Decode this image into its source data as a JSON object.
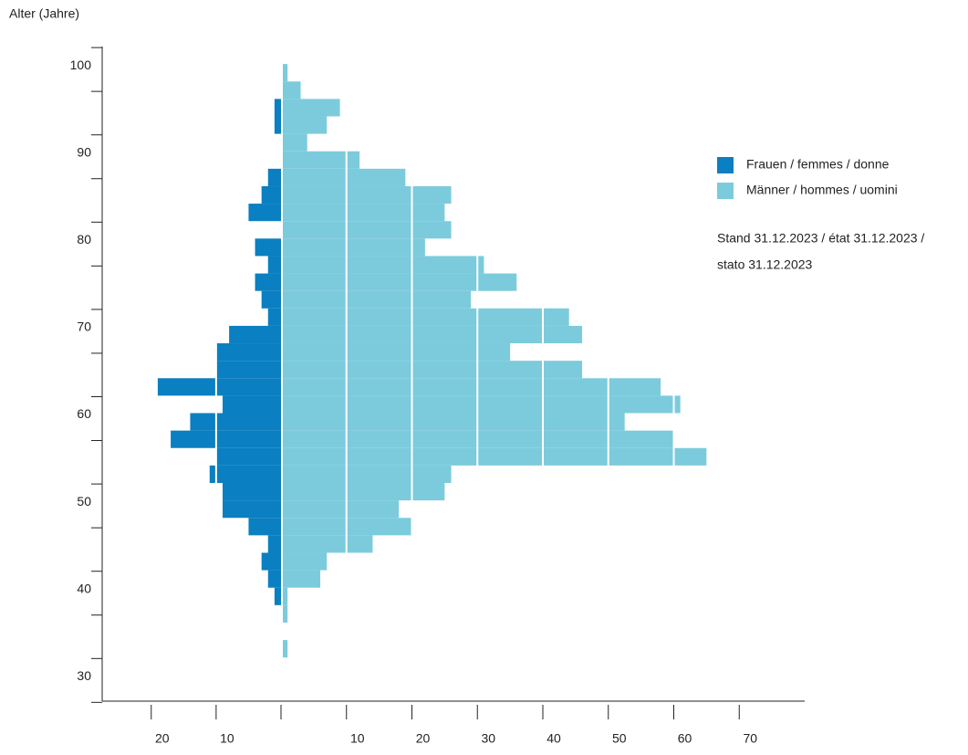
{
  "chart_data": {
    "type": "pyramid",
    "y_axis_label": "Alter (Jahre)",
    "ages": [
      99,
      97,
      95,
      93,
      91,
      89,
      87,
      85,
      83,
      81,
      79,
      77,
      75,
      73,
      71,
      69,
      67,
      65,
      63,
      61,
      59,
      57,
      55,
      53,
      51,
      49,
      47,
      45,
      43,
      41,
      39,
      37,
      35,
      33
    ],
    "series": [
      {
        "name": "Frauen / femmes / donne",
        "color": "#0a7fc1",
        "side": "left",
        "values": [
          0,
          0,
          1,
          1,
          0,
          0,
          2,
          3,
          5,
          0,
          4,
          2,
          4,
          3,
          2,
          8,
          10,
          10,
          19,
          9,
          14,
          17,
          10,
          11,
          9,
          9,
          5,
          2,
          3,
          2,
          1,
          0,
          0,
          0
        ]
      },
      {
        "name": "Männer / hommes / uomini",
        "color": "#7ccbdc",
        "side": "right",
        "values": [
          1,
          3,
          9,
          7,
          4,
          12,
          19,
          26,
          25,
          26,
          22,
          31,
          36,
          29,
          44,
          46,
          35,
          46,
          58,
          61,
          52.5,
          60,
          65,
          26,
          25,
          18,
          20,
          14,
          7,
          6,
          1,
          1,
          0,
          1
        ]
      }
    ],
    "note": [
      "Stand 31.12.2023 / état 31.12.2023 /",
      "stato 31.12.2023"
    ],
    "ylim": [
      27,
      102
    ],
    "yticks": [
      30,
      40,
      50,
      60,
      70,
      80,
      90,
      100
    ],
    "xlim_left": [
      0,
      27
    ],
    "xticks_left": [
      10,
      20
    ],
    "xlim_right": [
      0,
      80
    ],
    "xticks_right": [
      10,
      20,
      30,
      40,
      50,
      60,
      70
    ],
    "grid": true,
    "legend": "right"
  }
}
